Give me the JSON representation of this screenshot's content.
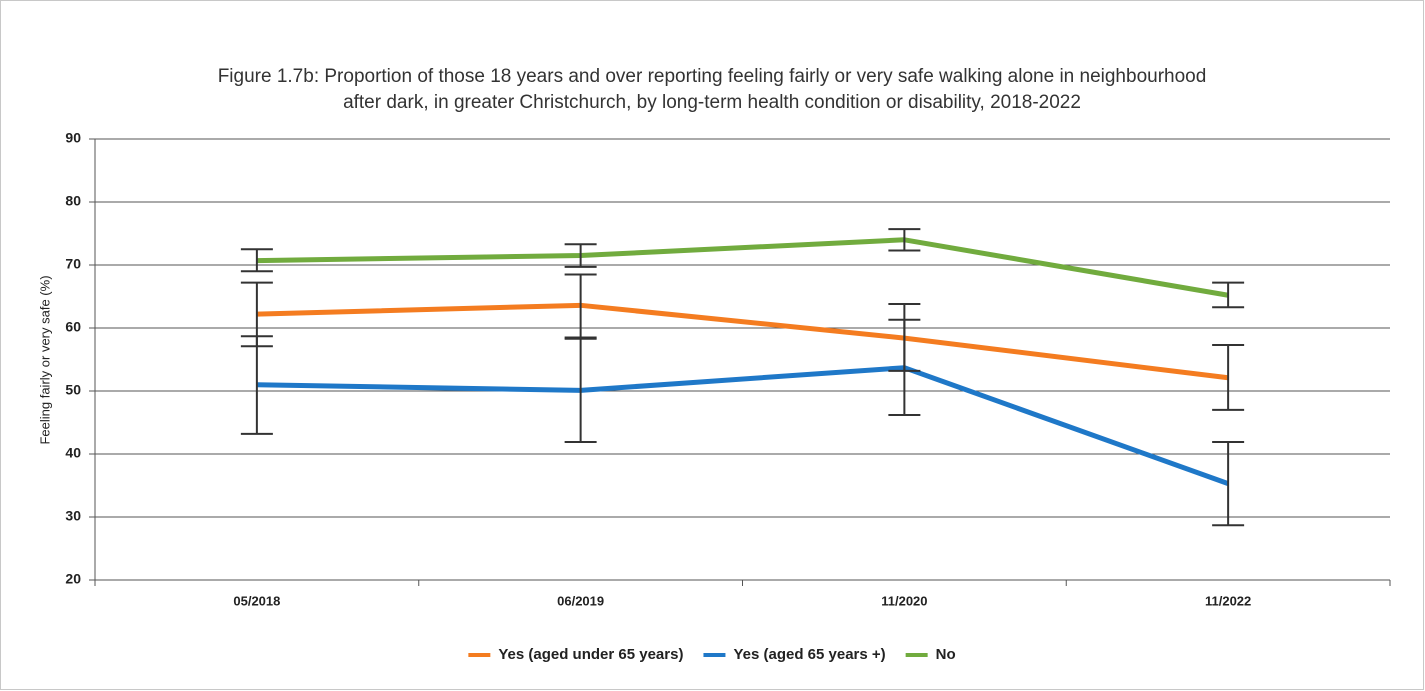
{
  "chart_data": {
    "type": "line",
    "title": [
      "Figure 1.7b: Proportion of those 18 years and over reporting feeling fairly or very safe walking alone in neighbourhood",
      "after dark, in greater Christchurch, by long-term health condition or disability, 2018-2022"
    ],
    "y_label": "Feeling fairly or very safe (%)",
    "categories": [
      "05/2018",
      "06/2019",
      "11/2020",
      "11/2022"
    ],
    "series": [
      {
        "name": "Yes (aged under 65 years)",
        "color": "#f47c20",
        "values": [
          62.2,
          63.6,
          58.4,
          52.1
        ],
        "lower": [
          57.1,
          58.5,
          53.2,
          47.0
        ],
        "upper": [
          67.2,
          68.5,
          63.8,
          57.3
        ]
      },
      {
        "name": "Yes (aged 65 years +)",
        "color": "#1f78c8",
        "values": [
          51.0,
          50.1,
          53.7,
          35.3
        ],
        "lower": [
          43.2,
          41.9,
          46.2,
          28.7
        ],
        "upper": [
          58.7,
          58.3,
          61.3,
          41.9
        ]
      },
      {
        "name": "No",
        "color": "#71ab3e",
        "values": [
          70.7,
          71.5,
          74.0,
          65.2
        ],
        "lower": [
          69.0,
          69.7,
          72.3,
          63.3
        ],
        "upper": [
          72.5,
          73.3,
          75.7,
          67.2
        ]
      }
    ],
    "ylim": [
      20,
      90
    ],
    "yticks": [
      20,
      30,
      40,
      50,
      60,
      70,
      80,
      90
    ],
    "grid": true,
    "legend": "bottom"
  }
}
